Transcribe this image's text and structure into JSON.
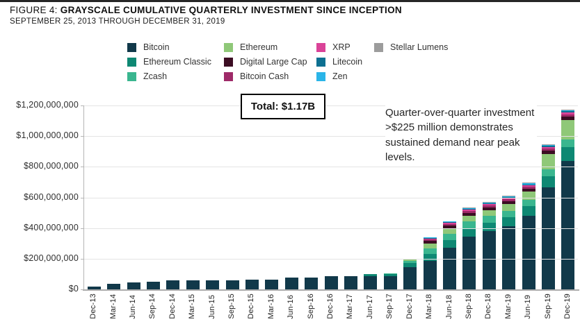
{
  "figure": {
    "label": "FIGURE 4:"
  },
  "legend": {
    "columns": [
      {
        "items": [
          {
            "label": "Bitcoin",
            "color": "#11394a"
          },
          {
            "label": "Ethereum Classic",
            "color": "#0e8873"
          },
          {
            "label": "Zcash",
            "color": "#3ab68f"
          }
        ]
      },
      {
        "items": [
          {
            "label": "Ethereum",
            "color": "#8fc878"
          },
          {
            "label": "Digital Large Cap",
            "color": "#3c0d23"
          },
          {
            "label": "Bitcoin Cash",
            "color": "#9e2a68"
          }
        ]
      },
      {
        "items": [
          {
            "label": "XRP",
            "color": "#da4398"
          },
          {
            "label": "Litecoin",
            "color": "#0d7091"
          },
          {
            "label": "Zen",
            "color": "#2ab5e8"
          }
        ]
      },
      {
        "items": [
          {
            "label": "Stellar Lumens",
            "color": "#9c9c9c"
          }
        ]
      }
    ]
  },
  "chart_data": {
    "type": "bar",
    "stacked": true,
    "title": "GRAYSCALE CUMULATIVE QUARTERLY INVESTMENT SINCE INCEPTION",
    "subtitle": "SEPTEMBER 25, 2013 THROUGH DECEMBER 31, 2019",
    "values_unit": "cumulative investment, millions of USD (estimated from bar heights)",
    "ylim_millions": [
      0,
      1200
    ],
    "y_ticks": [
      "$0",
      "$200,000,000",
      "$400,000,000",
      "$600,000,000",
      "$800,000,000",
      "$1,000,000,000",
      "$1,200,000,000"
    ],
    "legend_position": "top",
    "grid": true,
    "categories": [
      "Dec-13",
      "Mar-14",
      "Jun-14",
      "Sep-14",
      "Dec-14",
      "Mar-15",
      "Jun-15",
      "Sep-15",
      "Dec-15",
      "Mar-16",
      "Jun-16",
      "Sep-16",
      "Dec-16",
      "Mar-17",
      "Jun-17",
      "Sep-17",
      "Dec-17",
      "Mar-18",
      "Jun-18",
      "Sep-18",
      "Dec-18",
      "Mar-19",
      "Jun-19",
      "Sep-19",
      "Dec-19"
    ],
    "series": [
      {
        "name": "Bitcoin",
        "color": "#11394a",
        "values": [
          16,
          35,
          45,
          52,
          58,
          60,
          61,
          61,
          63,
          65,
          75,
          78,
          84,
          84,
          84,
          84,
          143,
          185,
          270,
          345,
          380,
          414,
          480,
          665,
          840
        ]
      },
      {
        "name": "Ethereum Classic",
        "color": "#0e8873",
        "values": [
          0,
          0,
          0,
          0,
          0,
          0,
          0,
          0,
          0,
          0,
          0,
          0,
          0,
          0,
          14,
          16,
          28,
          46,
          52,
          55,
          56,
          58,
          62,
          75,
          88
        ]
      },
      {
        "name": "Zcash",
        "color": "#3ab68f",
        "values": [
          0,
          0,
          0,
          0,
          0,
          0,
          0,
          0,
          0,
          0,
          0,
          0,
          0,
          0,
          0,
          5,
          13,
          38,
          40,
          42,
          42,
          42,
          42,
          45,
          50
        ]
      },
      {
        "name": "Ethereum",
        "color": "#8fc878",
        "values": [
          0,
          0,
          0,
          0,
          0,
          0,
          0,
          0,
          0,
          0,
          0,
          0,
          0,
          0,
          0,
          0,
          11,
          31,
          38,
          40,
          40,
          45,
          55,
          100,
          126
        ]
      },
      {
        "name": "Digital Large Cap",
        "color": "#3c0d23",
        "values": [
          0,
          0,
          0,
          0,
          0,
          0,
          0,
          0,
          0,
          0,
          0,
          0,
          0,
          0,
          0,
          0,
          0,
          15,
          16,
          16,
          17,
          17,
          18,
          20,
          24
        ]
      },
      {
        "name": "Bitcoin Cash",
        "color": "#9e2a68",
        "values": [
          0,
          0,
          0,
          0,
          0,
          0,
          0,
          0,
          0,
          0,
          0,
          0,
          0,
          0,
          0,
          0,
          0,
          12,
          12,
          13,
          13,
          13,
          14,
          14,
          15
        ]
      },
      {
        "name": "XRP",
        "color": "#da4398",
        "values": [
          0,
          0,
          0,
          0,
          0,
          0,
          0,
          0,
          0,
          0,
          0,
          0,
          0,
          0,
          0,
          0,
          0,
          6,
          7,
          8,
          8,
          8,
          9,
          11,
          12
        ]
      },
      {
        "name": "Litecoin",
        "color": "#0d7091",
        "values": [
          0,
          0,
          0,
          0,
          0,
          0,
          0,
          0,
          0,
          0,
          0,
          0,
          0,
          0,
          0,
          0,
          0,
          3,
          3,
          4,
          4,
          5,
          6,
          8,
          8
        ]
      },
      {
        "name": "Zen",
        "color": "#2ab5e8",
        "values": [
          0,
          0,
          0,
          0,
          0,
          0,
          0,
          0,
          0,
          0,
          0,
          0,
          0,
          0,
          0,
          0,
          0,
          2,
          2,
          3,
          3,
          4,
          5,
          6,
          6
        ]
      },
      {
        "name": "Stellar Lumens",
        "color": "#9c9c9c",
        "values": [
          0,
          0,
          0,
          0,
          0,
          0,
          0,
          0,
          0,
          0,
          0,
          0,
          0,
          0,
          0,
          0,
          0,
          0,
          0,
          1,
          1,
          1,
          1,
          2,
          2
        ]
      }
    ],
    "annotations": {
      "total_label": "Total: $1.17B",
      "callout": "Quarter-over-quarter investment >$225 million demonstrates sustained demand near peak levels."
    }
  }
}
